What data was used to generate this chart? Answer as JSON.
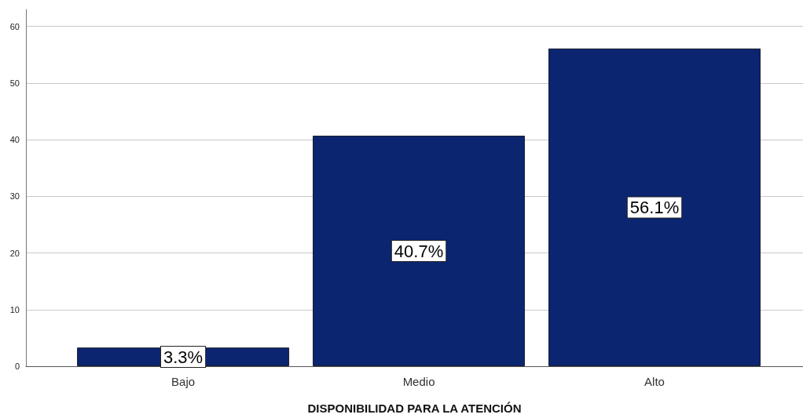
{
  "chart_data": {
    "type": "bar",
    "categories": [
      "Bajo",
      "Medio",
      "Alto"
    ],
    "values": [
      3.3,
      40.7,
      56.1
    ],
    "value_labels": [
      "3.3%",
      "40.7%",
      "56.1%"
    ],
    "color": "#0b2570",
    "xlabel": "DISPONIBILIDAD PARA LA ATENCIÓN",
    "ylim": [
      0,
      63
    ],
    "yticks": [
      0,
      10,
      20,
      30,
      40,
      50,
      60
    ],
    "grid": "y"
  }
}
